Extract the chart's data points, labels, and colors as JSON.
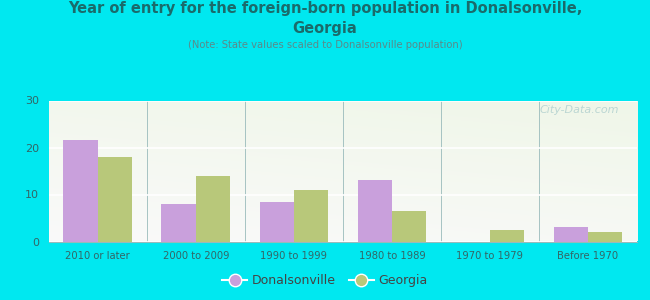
{
  "title_line1": "Year of entry for the foreign-born population in Donalsonville,",
  "title_line2": "Georgia",
  "subtitle": "(Note: State values scaled to Donalsonville population)",
  "categories": [
    "2010 or later",
    "2000 to 2009",
    "1990 to 1999",
    "1980 to 1989",
    "1970 to 1979",
    "Before 1970"
  ],
  "donalsonville_values": [
    21.5,
    8.0,
    8.5,
    13.0,
    0.0,
    3.0
  ],
  "georgia_values": [
    18.0,
    14.0,
    11.0,
    6.5,
    2.5,
    2.0
  ],
  "donalsonville_color": "#c9a0dc",
  "georgia_color": "#b8c87a",
  "background_color": "#00e8f0",
  "ylim": [
    0,
    30
  ],
  "yticks": [
    0,
    10,
    20,
    30
  ],
  "bar_width": 0.35,
  "watermark": "City-Data.com",
  "title_color": "#1a6b6b",
  "subtitle_color": "#5a8a8a",
  "tick_color": "#336666",
  "legend_label_color": "#444444"
}
